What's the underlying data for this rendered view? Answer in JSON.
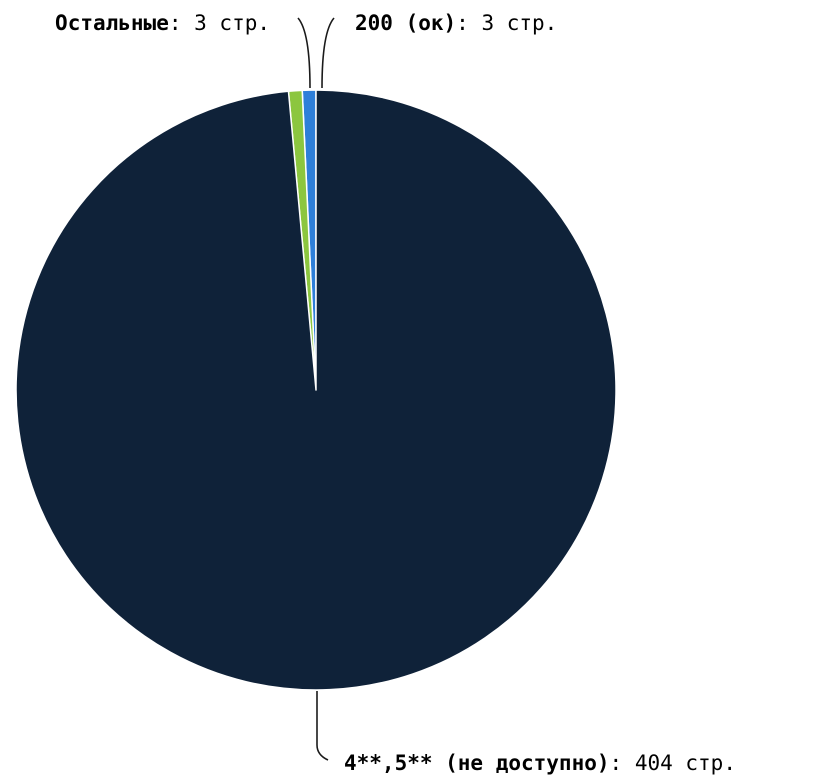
{
  "chart_data": {
    "type": "pie",
    "start_angle_deg": 0,
    "direction": "counterclockwise",
    "slices": [
      {
        "label": "200 (ок)",
        "value": 3,
        "value_text": "3 стр.",
        "color": "#2e7fd9"
      },
      {
        "label": "Остальные",
        "value": 3,
        "value_text": "3 стр.",
        "color": "#8cc63f"
      },
      {
        "label": "4**,5** (не доступно)",
        "value": 404,
        "value_text": "404 стр.",
        "color": "#0f2239"
      }
    ]
  }
}
